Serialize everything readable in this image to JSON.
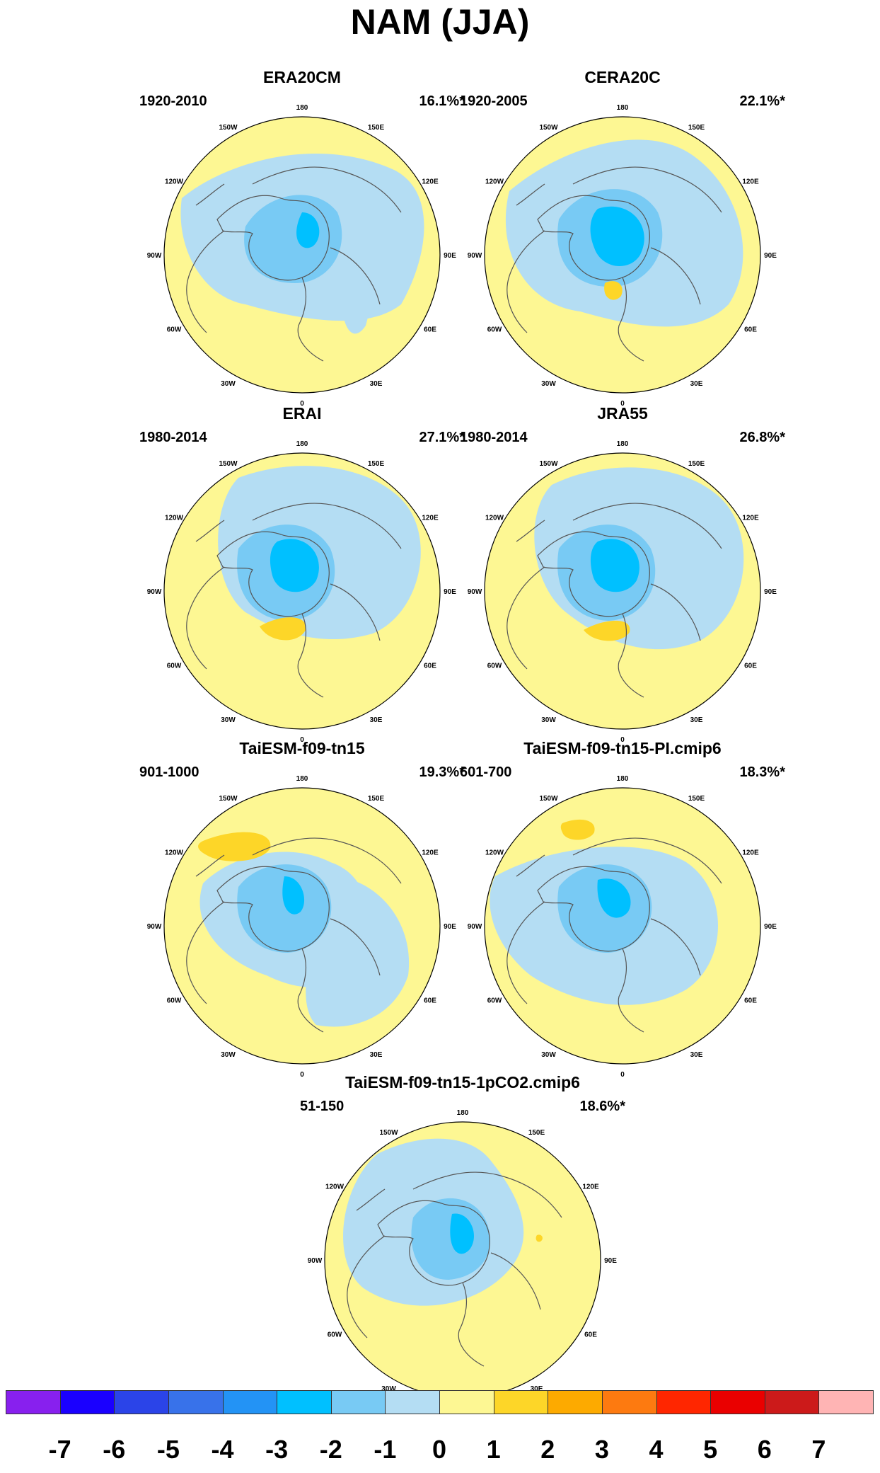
{
  "title": "NAM (JJA)",
  "lon_labels": [
    "180",
    "150E",
    "120E",
    "90E",
    "60E",
    "30E",
    "0",
    "30W",
    "60W",
    "90W",
    "120W",
    "150W"
  ],
  "panels": [
    {
      "name": "ERA20CM",
      "period": "1920-2010",
      "variance": "16.1%*"
    },
    {
      "name": "CERA20C",
      "period": "1920-2005",
      "variance": "22.1%*"
    },
    {
      "name": "ERAI",
      "period": "1980-2014",
      "variance": "27.1%*"
    },
    {
      "name": "JRA55",
      "period": "1980-2014",
      "variance": "26.8%*"
    },
    {
      "name": "TaiESM-f09-tn15",
      "period": "901-1000",
      "variance": "19.3%*"
    },
    {
      "name": "TaiESM-f09-tn15-PI.cmip6",
      "period": "601-700",
      "variance": "18.3%*"
    },
    {
      "name": "TaiESM-f09-tn15-1pCO2.cmip6",
      "period": "51-150",
      "variance": "18.6%*"
    }
  ],
  "colorbar": {
    "colors": [
      "#8820ee",
      "#1a00ff",
      "#2b44e8",
      "#3872ea",
      "#2393f5",
      "#00c0ff",
      "#78caf4",
      "#b4ddf3",
      "#fdf793",
      "#fdd628",
      "#fdaa00",
      "#fd7a10",
      "#ff2600",
      "#ea0000",
      "#cc1a1a",
      "#ffb4b4"
    ],
    "labels": [
      "-7",
      "-6",
      "-5",
      "-4",
      "-3",
      "-2",
      "-1",
      "0",
      "1",
      "2",
      "3",
      "4",
      "5",
      "6",
      "7"
    ]
  },
  "colors": {
    "positive_field": "#fdf793",
    "negative_field": "#b4ddf3",
    "moderate_negative": "#78caf4",
    "strong_negative": "#00c0ff",
    "positive_anomaly": "#fdd628",
    "coastline": "#555555"
  }
}
